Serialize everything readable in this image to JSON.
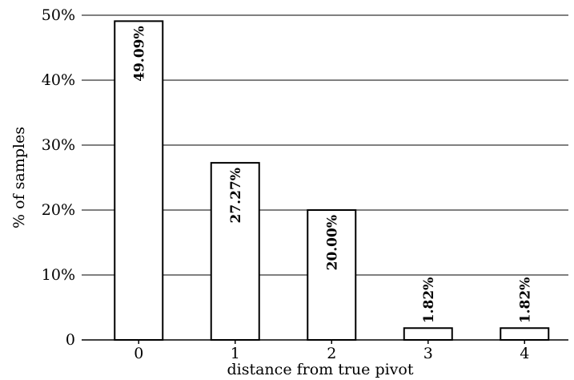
{
  "chart_data": {
    "type": "bar",
    "categories": [
      "0",
      "1",
      "2",
      "3",
      "4"
    ],
    "values": [
      49.09,
      27.27,
      20.0,
      1.82,
      1.82
    ],
    "data_labels": [
      "49.09%",
      "27.27%",
      "20.00%",
      "1.82%",
      "1.82%"
    ],
    "xlabel": "distance from true pivot",
    "ylabel": "% of samples",
    "ylim": [
      0,
      50
    ],
    "yticks": [
      0,
      10,
      20,
      30,
      40,
      50
    ],
    "ytick_labels": [
      "0",
      "10%",
      "20%",
      "30%",
      "40%",
      "50%"
    ],
    "grid": "horizontal",
    "bar_fill": "#ffffff",
    "bar_stroke": "#000000"
  }
}
